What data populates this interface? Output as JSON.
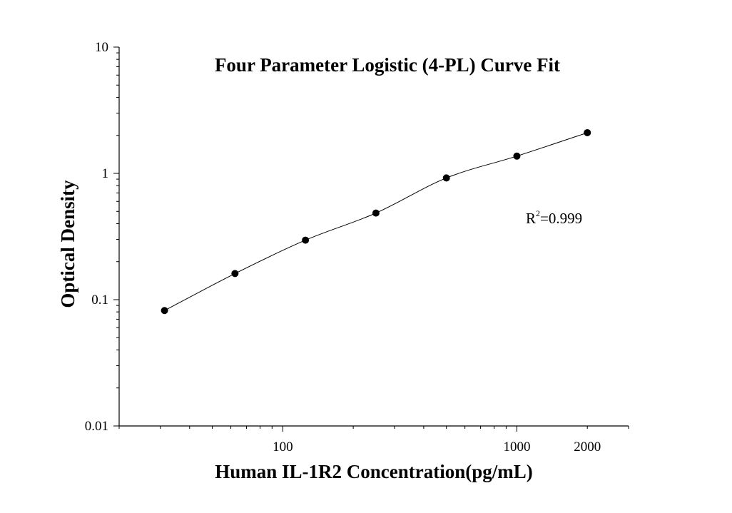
{
  "chart_data": {
    "type": "scatter",
    "title": "Four Parameter Logistic (4-PL) Curve Fit",
    "xlabel": "Human IL-1R2 Concentration(pg/mL)",
    "ylabel": "Optical Density",
    "x_scale": "log",
    "y_scale": "log",
    "xlim": [
      20,
      3000
    ],
    "ylim": [
      0.01,
      10
    ],
    "x_ticks": [
      {
        "value": 100,
        "label": "100"
      },
      {
        "value": 1000,
        "label": "1000"
      },
      {
        "value": 2000,
        "label": "2000"
      }
    ],
    "y_ticks": [
      {
        "value": 10,
        "label": "10"
      },
      {
        "value": 1,
        "label": "1"
      },
      {
        "value": 0.1,
        "label": "0.1"
      },
      {
        "value": 0.01,
        "label": "0.01"
      }
    ],
    "points": [
      {
        "x": 31.25,
        "y": 0.082
      },
      {
        "x": 62.5,
        "y": 0.161
      },
      {
        "x": 125,
        "y": 0.296
      },
      {
        "x": 250,
        "y": 0.485
      },
      {
        "x": 500,
        "y": 0.92
      },
      {
        "x": 1000,
        "y": 1.37
      },
      {
        "x": 2000,
        "y": 2.1
      }
    ],
    "annotation": {
      "base": "R",
      "sup": "2",
      "rest": "=0.999"
    },
    "grid": false,
    "legend": "none",
    "colors": {
      "axis": "#000000",
      "points": "#000000",
      "curve": "#000000"
    }
  }
}
